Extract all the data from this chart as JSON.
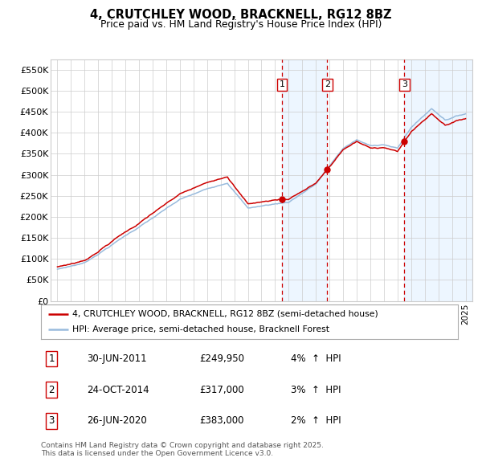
{
  "title": "4, CRUTCHLEY WOOD, BRACKNELL, RG12 8BZ",
  "subtitle": "Price paid vs. HM Land Registry's House Price Index (HPI)",
  "legend_line1": "4, CRUTCHLEY WOOD, BRACKNELL, RG12 8BZ (semi-detached house)",
  "legend_line2": "HPI: Average price, semi-detached house, Bracknell Forest",
  "transactions": [
    {
      "num": 1,
      "date": "30-JUN-2011",
      "price": 249950,
      "pct": "4%",
      "dir": "↑",
      "x": 2011.5
    },
    {
      "num": 2,
      "date": "24-OCT-2014",
      "price": 317000,
      "pct": "3%",
      "dir": "↑",
      "x": 2014.83
    },
    {
      "num": 3,
      "date": "26-JUN-2020",
      "price": 383000,
      "pct": "2%",
      "dir": "↑",
      "x": 2020.5
    }
  ],
  "footer": "Contains HM Land Registry data © Crown copyright and database right 2025.\nThis data is licensed under the Open Government Licence v3.0.",
  "ylim": [
    0,
    575000
  ],
  "yticks": [
    0,
    50000,
    100000,
    150000,
    200000,
    250000,
    300000,
    350000,
    400000,
    450000,
    500000,
    550000
  ],
  "ytick_labels": [
    "£0",
    "£50K",
    "£100K",
    "£150K",
    "£200K",
    "£250K",
    "£300K",
    "£350K",
    "£400K",
    "£450K",
    "£500K",
    "£550K"
  ],
  "xlim": [
    1994.5,
    2025.5
  ],
  "xticks": [
    1995,
    1996,
    1997,
    1998,
    1999,
    2000,
    2001,
    2002,
    2003,
    2004,
    2005,
    2006,
    2007,
    2008,
    2009,
    2010,
    2011,
    2012,
    2013,
    2014,
    2015,
    2016,
    2017,
    2018,
    2019,
    2020,
    2021,
    2022,
    2023,
    2024,
    2025
  ],
  "background_color": "#ffffff",
  "plot_bg": "#ffffff",
  "grid_color": "#cccccc",
  "red_color": "#cc0000",
  "blue_color": "#99bbdd",
  "dashed_color": "#cc0000",
  "shaded_color": "#ddeeff",
  "shade_alpha": 0.5
}
